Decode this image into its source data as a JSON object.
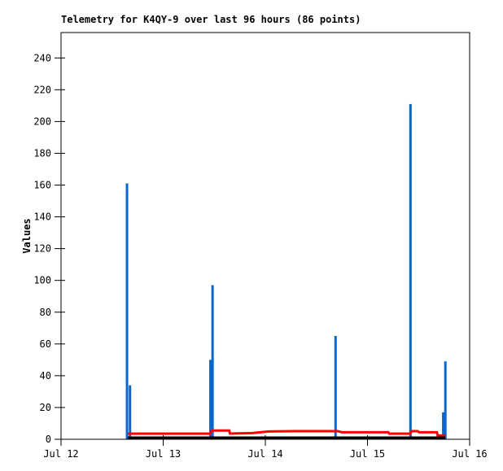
{
  "chart_data": {
    "type": "line",
    "title": "Telemetry for K4QY-9 over last 96 hours (86 points)",
    "ylabel": "Values",
    "xlabel": "",
    "grid": false,
    "legend": "none",
    "background_color": "#ffffff",
    "frame_color": "#000000",
    "x_range_hours": [
      0,
      96
    ],
    "ylim": [
      0,
      256
    ],
    "y_ticks": [
      0,
      20,
      40,
      60,
      80,
      100,
      120,
      140,
      160,
      180,
      200,
      220,
      240
    ],
    "x_ticks": [
      {
        "hours": 0,
        "label": "Jul 12"
      },
      {
        "hours": 24,
        "label": "Jul 13"
      },
      {
        "hours": 48,
        "label": "Jul 14"
      },
      {
        "hours": 72,
        "label": "Jul 15"
      },
      {
        "hours": 96,
        "label": "Jul 16"
      }
    ],
    "series": [
      {
        "name": "blue-spikes",
        "type": "impulse",
        "color": "#0966CC",
        "width": 3,
        "points": [
          [
            15.5,
            161
          ],
          [
            16.2,
            34
          ],
          [
            35.1,
            50
          ],
          [
            35.6,
            97
          ],
          [
            64.5,
            65
          ],
          [
            82.1,
            211
          ],
          [
            89.8,
            17
          ],
          [
            90.3,
            49
          ]
        ]
      },
      {
        "name": "red-line",
        "type": "line",
        "color": "#FF0000",
        "width": 3,
        "points": [
          [
            15.7,
            3.5
          ],
          [
            35.0,
            3.5
          ],
          [
            35.4,
            5.5
          ],
          [
            39.5,
            5.5
          ],
          [
            39.7,
            3.6
          ],
          [
            44.9,
            3.9
          ],
          [
            48.8,
            4.9
          ],
          [
            55.0,
            5.1
          ],
          [
            65.0,
            5.1
          ],
          [
            66.0,
            4.4
          ],
          [
            76.9,
            4.4
          ],
          [
            77.1,
            3.5
          ],
          [
            82.0,
            3.5
          ],
          [
            82.4,
            5.1
          ],
          [
            83.8,
            5.1
          ],
          [
            84.1,
            4.4
          ],
          [
            88.3,
            4.4
          ],
          [
            88.5,
            2.4
          ],
          [
            90.3,
            2.4
          ]
        ]
      },
      {
        "name": "black-line",
        "type": "line",
        "color": "#000000",
        "width": 3,
        "points": [
          [
            15.7,
            1.0
          ],
          [
            90.3,
            1.0
          ]
        ]
      }
    ]
  }
}
